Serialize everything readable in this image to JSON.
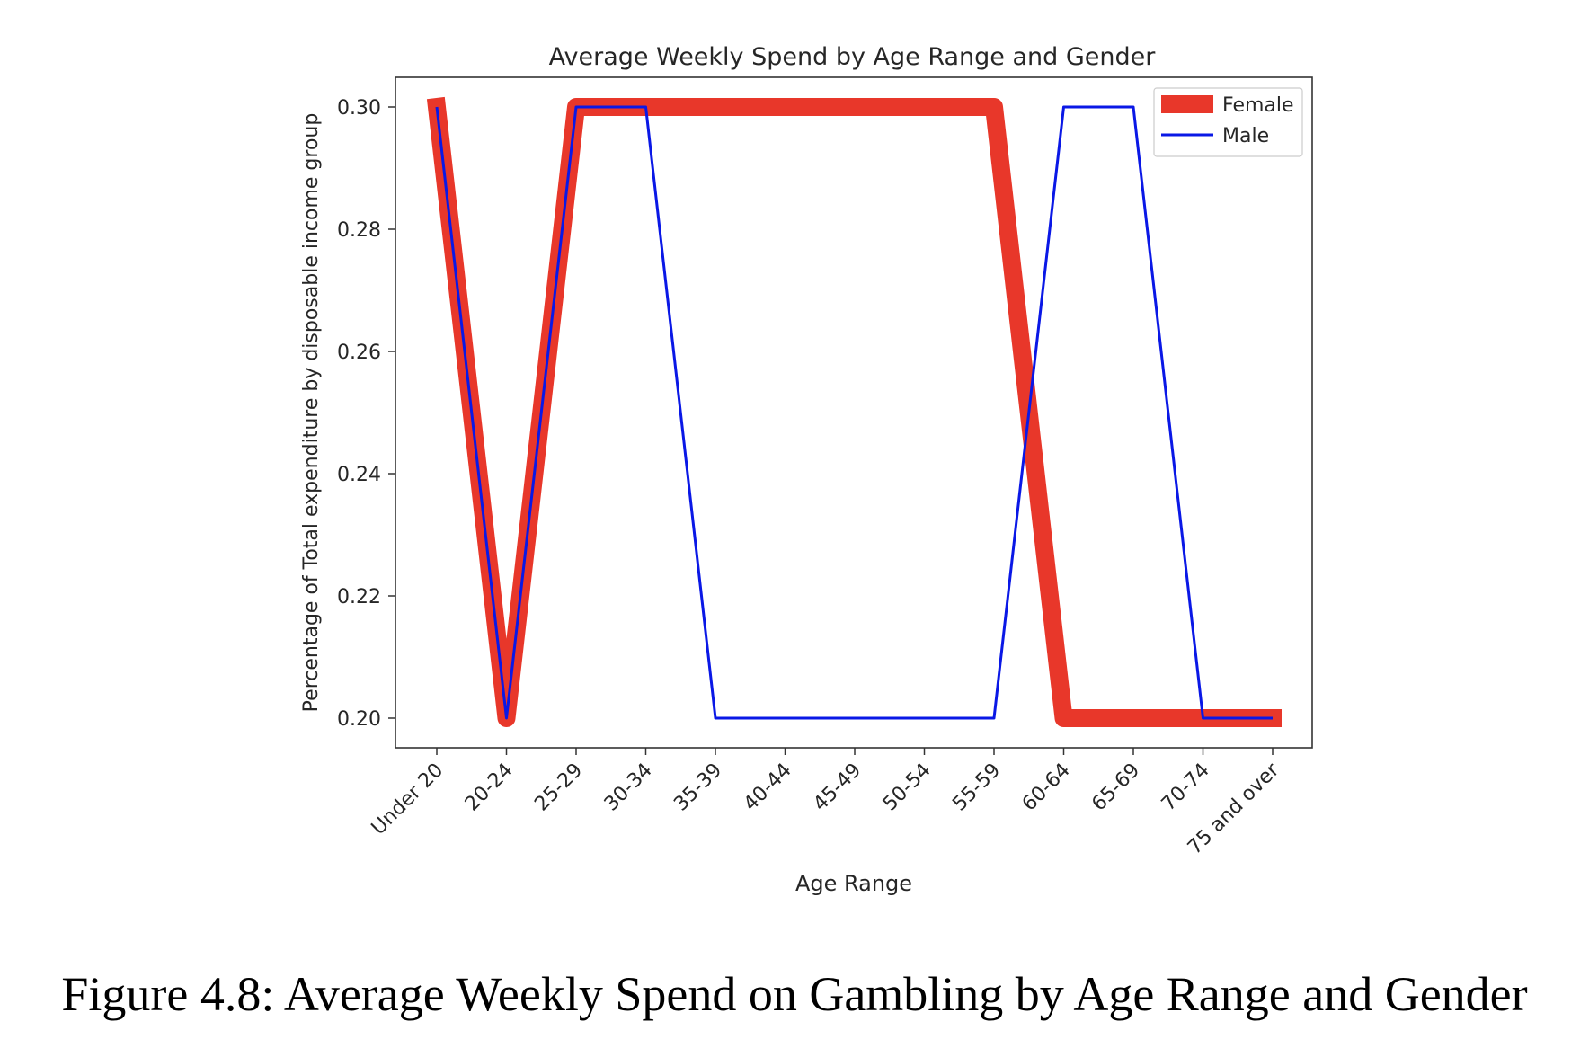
{
  "chart_data": {
    "type": "line",
    "title": "Average Weekly Spend by Age Range and Gender",
    "xlabel": "Age Range",
    "ylabel": "Percentage of Total expenditure by disposable income group",
    "categories": [
      "Under 20",
      "20-24",
      "25-29",
      "30-34",
      "35-39",
      "40-44",
      "45-49",
      "50-54",
      "55-59",
      "60-64",
      "65-69",
      "70-74",
      "75 and over"
    ],
    "y_ticks": [
      "0.20",
      "0.22",
      "0.24",
      "0.26",
      "0.28",
      "0.30"
    ],
    "ylim": [
      0.195,
      0.305
    ],
    "grid": false,
    "legend_position": "top-right",
    "series": [
      {
        "name": "Female",
        "color": "#e8372a",
        "values": [
          0.3,
          0.2,
          0.3,
          0.3,
          0.3,
          0.3,
          0.3,
          0.3,
          0.3,
          0.2,
          0.2,
          0.2,
          0.2
        ]
      },
      {
        "name": "Male",
        "color": "#0a18e6",
        "values": [
          0.3,
          0.2,
          0.3,
          0.3,
          0.2,
          0.2,
          0.2,
          0.2,
          0.2,
          0.3,
          0.3,
          0.2,
          0.2
        ]
      }
    ]
  },
  "caption": "Figure 4.8: Average Weekly Spend on Gambling by Age Range and Gender"
}
